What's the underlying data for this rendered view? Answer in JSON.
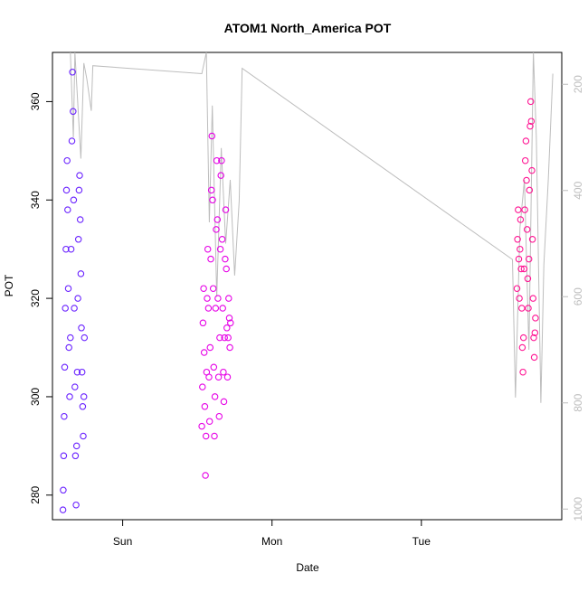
{
  "chart_data": {
    "type": "scatter",
    "title": "ATOM1 North_America POT",
    "xlabel": "Date",
    "ylabel": "POT",
    "x_axis": {
      "ticks": [
        {
          "label": "Sun",
          "day": 1.0
        },
        {
          "label": "Mon",
          "day": 2.0
        },
        {
          "label": "Tue",
          "day": 3.0
        }
      ],
      "range_days": [
        0.53,
        3.94
      ]
    },
    "y_axis": {
      "ticks": [
        280,
        300,
        320,
        340,
        360
      ],
      "range": [
        275,
        370
      ]
    },
    "y2_axis": {
      "ticks": [
        200,
        400,
        600,
        800,
        1000
      ],
      "range_reversed": [
        1020,
        140
      ],
      "color": "#bdbdbd"
    },
    "grid": false,
    "legend": "none",
    "colors": {
      "flight1": "#6a22ff",
      "flight2": "#e600e6",
      "flight3": "#ff1493",
      "secondary_line": "#bdbdbd"
    },
    "series": [
      {
        "values_description": "segment 1 (purple)",
        "x_start": 0.6,
        "x_end": 0.88,
        "points": [
          [
            0.6,
            277
          ],
          [
            0.602,
            281
          ],
          [
            0.605,
            288
          ],
          [
            0.608,
            296
          ],
          [
            0.612,
            306
          ],
          [
            0.616,
            318
          ],
          [
            0.62,
            330
          ],
          [
            0.624,
            342
          ],
          [
            0.628,
            348
          ],
          [
            0.632,
            338
          ],
          [
            0.636,
            322
          ],
          [
            0.64,
            310
          ],
          [
            0.645,
            300
          ],
          [
            0.65,
            312
          ],
          [
            0.655,
            330
          ],
          [
            0.66,
            352
          ],
          [
            0.664,
            366
          ],
          [
            0.668,
            358
          ],
          [
            0.672,
            340
          ],
          [
            0.676,
            318
          ],
          [
            0.68,
            302
          ],
          [
            0.684,
            288
          ],
          [
            0.688,
            278
          ],
          [
            0.692,
            290
          ],
          [
            0.696,
            305
          ],
          [
            0.7,
            320
          ],
          [
            0.704,
            332
          ],
          [
            0.708,
            342
          ],
          [
            0.712,
            345
          ],
          [
            0.716,
            336
          ],
          [
            0.72,
            325
          ],
          [
            0.724,
            314
          ],
          [
            0.728,
            305
          ],
          [
            0.732,
            298
          ],
          [
            0.736,
            292
          ],
          [
            0.74,
            300
          ],
          [
            0.744,
            312
          ]
        ]
      },
      {
        "values_description": "segment 2 (magenta)",
        "x_start": 1.52,
        "x_end": 1.82,
        "points": [
          [
            1.53,
            294
          ],
          [
            1.534,
            302
          ],
          [
            1.538,
            315
          ],
          [
            1.542,
            322
          ],
          [
            1.546,
            309
          ],
          [
            1.55,
            298
          ],
          [
            1.554,
            284
          ],
          [
            1.558,
            292
          ],
          [
            1.562,
            305
          ],
          [
            1.566,
            320
          ],
          [
            1.57,
            330
          ],
          [
            1.574,
            318
          ],
          [
            1.578,
            304
          ],
          [
            1.582,
            295
          ],
          [
            1.586,
            310
          ],
          [
            1.59,
            328
          ],
          [
            1.594,
            342
          ],
          [
            1.598,
            353
          ],
          [
            1.602,
            340
          ],
          [
            1.606,
            322
          ],
          [
            1.61,
            306
          ],
          [
            1.614,
            292
          ],
          [
            1.618,
            300
          ],
          [
            1.622,
            318
          ],
          [
            1.626,
            334
          ],
          [
            1.63,
            348
          ],
          [
            1.634,
            336
          ],
          [
            1.638,
            320
          ],
          [
            1.642,
            304
          ],
          [
            1.646,
            296
          ],
          [
            1.65,
            312
          ],
          [
            1.654,
            330
          ],
          [
            1.658,
            345
          ],
          [
            1.662,
            348
          ],
          [
            1.666,
            332
          ],
          [
            1.67,
            318
          ],
          [
            1.674,
            305
          ],
          [
            1.678,
            299
          ],
          [
            1.682,
            312
          ],
          [
            1.686,
            328
          ],
          [
            1.69,
            338
          ],
          [
            1.694,
            326
          ],
          [
            1.698,
            314
          ],
          [
            1.702,
            304
          ],
          [
            1.706,
            312
          ],
          [
            1.71,
            320
          ],
          [
            1.714,
            316
          ],
          [
            1.718,
            310
          ],
          [
            1.722,
            315
          ]
        ]
      },
      {
        "values_description": "segment 3 (pink)",
        "x_start": 3.64,
        "x_end": 3.9,
        "points": [
          [
            3.64,
            322
          ],
          [
            3.644,
            332
          ],
          [
            3.648,
            338
          ],
          [
            3.652,
            328
          ],
          [
            3.656,
            320
          ],
          [
            3.66,
            330
          ],
          [
            3.664,
            336
          ],
          [
            3.668,
            326
          ],
          [
            3.672,
            318
          ],
          [
            3.676,
            310
          ],
          [
            3.68,
            305
          ],
          [
            3.684,
            312
          ],
          [
            3.688,
            326
          ],
          [
            3.692,
            338
          ],
          [
            3.696,
            348
          ],
          [
            3.7,
            352
          ],
          [
            3.704,
            344
          ],
          [
            3.708,
            334
          ],
          [
            3.712,
            324
          ],
          [
            3.716,
            318
          ],
          [
            3.72,
            328
          ],
          [
            3.724,
            342
          ],
          [
            3.728,
            355
          ],
          [
            3.732,
            360
          ],
          [
            3.736,
            356
          ],
          [
            3.74,
            346
          ],
          [
            3.744,
            332
          ],
          [
            3.748,
            320
          ],
          [
            3.752,
            312
          ],
          [
            3.756,
            308
          ],
          [
            3.76,
            313
          ],
          [
            3.764,
            316
          ]
        ]
      }
    ],
    "secondary_line": [
      [
        0.65,
        140
      ],
      [
        0.67,
        300
      ],
      [
        0.68,
        140
      ],
      [
        0.72,
        340
      ],
      [
        0.74,
        160
      ],
      [
        0.76,
        190
      ],
      [
        0.79,
        250
      ],
      [
        0.8,
        165
      ],
      [
        1.53,
        180
      ],
      [
        1.56,
        140
      ],
      [
        1.58,
        460
      ],
      [
        1.6,
        240
      ],
      [
        1.63,
        600
      ],
      [
        1.66,
        320
      ],
      [
        1.69,
        500
      ],
      [
        1.72,
        380
      ],
      [
        1.75,
        560
      ],
      [
        1.78,
        420
      ],
      [
        1.8,
        170
      ],
      [
        3.61,
        530
      ],
      [
        3.63,
        790
      ],
      [
        3.66,
        470
      ],
      [
        3.69,
        380
      ],
      [
        3.72,
        700
      ],
      [
        3.75,
        140
      ],
      [
        3.77,
        300
      ],
      [
        3.8,
        800
      ],
      [
        3.82,
        540
      ],
      [
        3.85,
        380
      ],
      [
        3.88,
        180
      ]
    ]
  }
}
